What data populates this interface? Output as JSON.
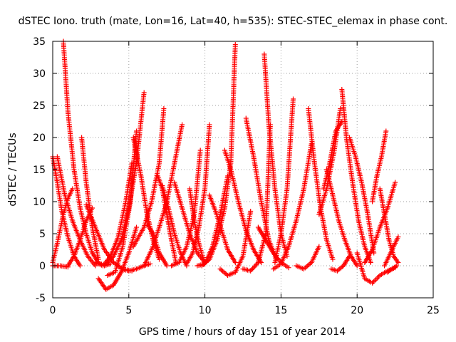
{
  "chart_data": {
    "type": "scatter",
    "title": "dSTEC Iono. truth (mate, Lon=16, Lat=40, h=535): STEC-STEC_elemax in phase cont.",
    "xlabel": "GPS time / hours of day 151 of year 2014",
    "ylabel": "dSTEC  / TECUs",
    "xlim": [
      0,
      25
    ],
    "ylim": [
      -5,
      35
    ],
    "xticks": [
      0,
      5,
      10,
      15,
      20,
      25
    ],
    "yticks": [
      -5,
      0,
      5,
      10,
      15,
      20,
      25,
      30,
      35
    ],
    "grid": true,
    "marker": "+",
    "colors": {
      "series": "#ff0000",
      "grid": "#a0a0a0",
      "axis": "#000000"
    },
    "series": [
      {
        "x": [
          0.0,
          0.3,
          0.6,
          1.0,
          1.4,
          1.8
        ],
        "y": [
          17.0,
          13.0,
          8.5,
          4.5,
          1.5,
          0.0
        ]
      },
      {
        "x": [
          0.0,
          0.3,
          0.7,
          1.0,
          1.3
        ],
        "y": [
          0.5,
          3.5,
          8.0,
          10.5,
          12.0
        ]
      },
      {
        "x": [
          0.0,
          0.5,
          1.0
        ],
        "y": [
          0.0,
          0.0,
          -0.2
        ]
      },
      {
        "x": [
          0.7,
          1.0,
          1.4,
          1.8,
          2.2,
          2.6,
          3.0,
          3.4,
          3.8
        ],
        "y": [
          35.0,
          24.0,
          15.0,
          9.0,
          5.0,
          2.0,
          0.5,
          0.0,
          0.3
        ]
      },
      {
        "x": [
          0.3,
          0.8,
          1.3,
          1.8,
          2.3,
          2.8
        ],
        "y": [
          17.0,
          11.0,
          7.0,
          4.0,
          1.5,
          0.0
        ]
      },
      {
        "x": [
          1.0,
          1.4,
          1.8,
          2.2,
          2.6
        ],
        "y": [
          0.0,
          1.5,
          4.0,
          7.0,
          9.0
        ]
      },
      {
        "x": [
          1.9,
          2.2,
          2.6,
          3.0
        ],
        "y": [
          20.0,
          13.0,
          6.0,
          1.0
        ]
      },
      {
        "x": [
          3.0,
          3.5,
          4.0,
          4.5,
          5.0,
          5.5
        ],
        "y": [
          -2.0,
          -3.7,
          -3.0,
          -1.0,
          2.0,
          6.0
        ]
      },
      {
        "x": [
          2.8,
          3.3,
          3.8,
          4.3,
          4.8,
          5.2
        ],
        "y": [
          0.5,
          0.0,
          1.5,
          4.5,
          10.0,
          16.0
        ]
      },
      {
        "x": [
          3.6,
          4.1,
          4.6,
          5.1,
          5.5
        ],
        "y": [
          -1.5,
          -1.0,
          3.0,
          10.0,
          21.0
        ]
      },
      {
        "x": [
          3.5,
          4.0,
          4.5,
          5.0,
          5.5,
          6.0
        ],
        "y": [
          0.3,
          1.5,
          4.0,
          9.0,
          16.0,
          27.0
        ]
      },
      {
        "x": [
          2.2,
          2.8,
          3.4,
          4.0,
          4.6,
          5.2
        ],
        "y": [
          9.5,
          6.0,
          2.5,
          0.5,
          -0.5,
          -0.8
        ]
      },
      {
        "x": [
          4.5,
          5.0,
          5.5,
          6.0,
          6.4
        ],
        "y": [
          -0.5,
          -0.8,
          -0.5,
          0.0,
          0.3
        ]
      },
      {
        "x": [
          5.3,
          6.0,
          6.5,
          7.0,
          7.3
        ],
        "y": [
          3.0,
          6.0,
          10.0,
          16.0,
          24.5
        ]
      },
      {
        "x": [
          6.0,
          6.5,
          7.0,
          7.5,
          8.0,
          8.5
        ],
        "y": [
          0.0,
          2.5,
          6.0,
          10.0,
          16.0,
          22.0
        ]
      },
      {
        "x": [
          5.3,
          5.8,
          6.2,
          6.6,
          7.0
        ],
        "y": [
          20.0,
          14.0,
          8.0,
          4.0,
          1.0
        ]
      },
      {
        "x": [
          6.2,
          6.6,
          7.0,
          7.5
        ],
        "y": [
          6.5,
          5.0,
          2.0,
          0.0
        ]
      },
      {
        "x": [
          6.9,
          7.2,
          7.5,
          7.8,
          8.1
        ],
        "y": [
          14.0,
          12.0,
          8.0,
          4.0,
          0.5
        ]
      },
      {
        "x": [
          7.2,
          7.6,
          8.0,
          8.4,
          8.8
        ],
        "y": [
          12.5,
          9.0,
          5.0,
          2.0,
          0.0
        ]
      },
      {
        "x": [
          7.8,
          8.3,
          8.8,
          9.3,
          9.7
        ],
        "y": [
          0.0,
          0.5,
          3.0,
          8.0,
          18.0
        ]
      },
      {
        "x": [
          8.8,
          9.2,
          9.6,
          10.0,
          10.3
        ],
        "y": [
          0.3,
          2.0,
          6.0,
          12.0,
          22.0
        ]
      },
      {
        "x": [
          8.0,
          8.5,
          9.0,
          9.5,
          10.0
        ],
        "y": [
          13.0,
          9.0,
          5.0,
          2.0,
          0.5
        ]
      },
      {
        "x": [
          9.0,
          9.3,
          9.6,
          9.9
        ],
        "y": [
          12.0,
          7.0,
          3.5,
          1.0
        ]
      },
      {
        "x": [
          9.5,
          10.0,
          10.5,
          11.0,
          11.5
        ],
        "y": [
          0.0,
          0.3,
          3.0,
          8.0,
          14.0
        ]
      },
      {
        "x": [
          9.8,
          10.3,
          10.8,
          11.3,
          11.7,
          12.0
        ],
        "y": [
          0.0,
          1.0,
          4.0,
          9.0,
          16.0,
          34.5
        ]
      },
      {
        "x": [
          10.3,
          10.7,
          11.1,
          11.5,
          12.0
        ],
        "y": [
          11.0,
          8.5,
          5.5,
          2.5,
          0.5
        ]
      },
      {
        "x": [
          11.3,
          11.7,
          12.2,
          12.7,
          13.2,
          13.7
        ],
        "y": [
          18.0,
          15.0,
          10.0,
          5.5,
          2.5,
          0.5
        ]
      },
      {
        "x": [
          11.0,
          11.5,
          12.0,
          12.5,
          13.0
        ],
        "y": [
          -0.5,
          -1.5,
          -1.0,
          1.5,
          8.5
        ]
      },
      {
        "x": [
          12.7,
          13.2,
          13.7,
          14.2,
          14.7
        ],
        "y": [
          23.0,
          17.0,
          10.0,
          4.0,
          1.0
        ]
      },
      {
        "x": [
          12.5,
          13.0,
          13.5,
          14.0,
          14.3
        ],
        "y": [
          -0.5,
          -0.8,
          0.5,
          5.0,
          22.0
        ]
      },
      {
        "x": [
          13.9,
          14.2,
          14.6,
          15.0,
          15.4
        ],
        "y": [
          33.0,
          22.0,
          12.0,
          5.0,
          1.5
        ]
      },
      {
        "x": [
          13.5,
          14.0,
          14.5,
          15.0,
          15.5
        ],
        "y": [
          6.0,
          4.0,
          2.0,
          0.5,
          -0.3
        ]
      },
      {
        "x": [
          14.5,
          15.0,
          15.5,
          16.0,
          16.5,
          17.0
        ],
        "y": [
          -0.5,
          0.3,
          3.0,
          7.0,
          12.0,
          19.0
        ]
      },
      {
        "x": [
          14.6,
          15.0,
          15.4,
          15.8
        ],
        "y": [
          0.5,
          5.0,
          12.0,
          26.0
        ]
      },
      {
        "x": [
          16.0,
          16.5,
          17.0,
          17.5
        ],
        "y": [
          0.0,
          -0.5,
          0.5,
          3.0
        ]
      },
      {
        "x": [
          16.8,
          17.2,
          17.6,
          18.0,
          18.4
        ],
        "y": [
          24.5,
          16.0,
          9.0,
          4.0,
          1.0
        ]
      },
      {
        "x": [
          17.5,
          18.0,
          18.5,
          18.9
        ],
        "y": [
          8.0,
          12.0,
          18.0,
          24.5
        ]
      },
      {
        "x": [
          17.8,
          18.2,
          18.6,
          19.0
        ],
        "y": [
          12.0,
          16.0,
          21.0,
          22.5
        ]
      },
      {
        "x": [
          18.0,
          18.4,
          18.8,
          19.2,
          19.6,
          20.0
        ],
        "y": [
          15.0,
          11.0,
          7.0,
          4.0,
          1.5,
          0.0
        ]
      },
      {
        "x": [
          18.3,
          18.7,
          19.1,
          19.5
        ],
        "y": [
          -0.5,
          -0.8,
          0.0,
          1.5
        ]
      },
      {
        "x": [
          19.0,
          19.3,
          19.7,
          20.1,
          20.5,
          20.9
        ],
        "y": [
          27.5,
          20.0,
          13.0,
          7.0,
          3.0,
          0.5
        ]
      },
      {
        "x": [
          19.5,
          19.9,
          20.3,
          20.7,
          21.1
        ],
        "y": [
          20.0,
          17.0,
          13.0,
          8.0,
          2.0
        ]
      },
      {
        "x": [
          20.0,
          20.5,
          21.0,
          21.5,
          22.0,
          22.5
        ],
        "y": [
          2.0,
          -2.0,
          -2.7,
          -1.5,
          -0.8,
          -0.3
        ]
      },
      {
        "x": [
          20.5,
          21.0,
          21.5,
          22.0,
          22.5
        ],
        "y": [
          0.5,
          2.5,
          6.0,
          9.0,
          13.0
        ]
      },
      {
        "x": [
          21.0,
          21.3,
          21.6,
          21.9
        ],
        "y": [
          10.0,
          14.0,
          17.0,
          21.0
        ]
      },
      {
        "x": [
          21.5,
          21.8,
          22.1,
          22.4,
          22.7
        ],
        "y": [
          12.0,
          8.0,
          4.0,
          1.5,
          0.5
        ]
      },
      {
        "x": [
          21.8,
          22.1,
          22.4,
          22.7
        ],
        "y": [
          0.0,
          1.5,
          3.0,
          4.5
        ]
      },
      {
        "x": [
          22.0,
          22.3,
          22.6
        ],
        "y": [
          -1.0,
          -0.5,
          0.0
        ]
      }
    ]
  }
}
